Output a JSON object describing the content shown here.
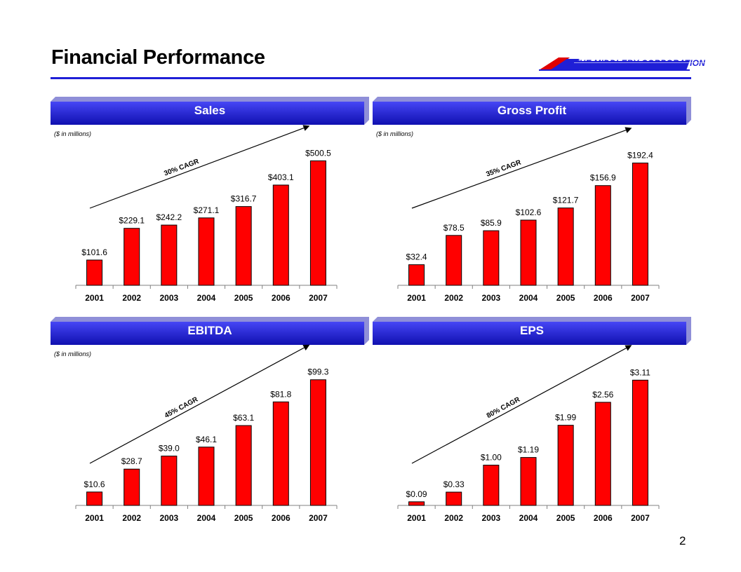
{
  "page": {
    "title": "Financial Performance",
    "page_number": "2",
    "logo_text": "THE MIDDLEBY CORPORATION",
    "colors": {
      "accent": "#1f1fd6",
      "bar": "#ff0000",
      "header_top": "#3a3af0",
      "header_bottom": "#1212b8",
      "logo_red": "#e00000"
    }
  },
  "chart_data": [
    {
      "type": "bar",
      "title": "Sales",
      "units_note": "($ in millions)",
      "categories": [
        "2001",
        "2002",
        "2003",
        "2004",
        "2005",
        "2006",
        "2007"
      ],
      "values": [
        101.6,
        229.1,
        242.2,
        271.1,
        316.7,
        403.1,
        500.5
      ],
      "labels": [
        "$101.6",
        "$229.1",
        "$242.2",
        "$271.1",
        "$316.7",
        "$403.1",
        "$500.5"
      ],
      "cagr_label": "30% CAGR",
      "ylim": [
        0,
        575
      ]
    },
    {
      "type": "bar",
      "title": "Gross Profit",
      "units_note": "($ in millions)",
      "categories": [
        "2001",
        "2002",
        "2003",
        "2004",
        "2005",
        "2006",
        "2007"
      ],
      "values": [
        32.4,
        78.5,
        85.9,
        102.6,
        121.7,
        156.9,
        192.4
      ],
      "labels": [
        "$32.4",
        "$78.5",
        "$85.9",
        "$102.6",
        "$121.7",
        "$156.9",
        "$192.4"
      ],
      "cagr_label": "35% CAGR",
      "ylim": [
        0,
        225
      ]
    },
    {
      "type": "bar",
      "title": "EBITDA",
      "units_note": "($ in millions)",
      "categories": [
        "2001",
        "2002",
        "2003",
        "2004",
        "2005",
        "2006",
        "2007"
      ],
      "values": [
        10.6,
        28.7,
        39.0,
        46.1,
        63.1,
        81.8,
        99.3
      ],
      "labels": [
        "$10.6",
        "$28.7",
        "$39.0",
        "$46.1",
        "$63.1",
        "$81.8",
        "$99.3"
      ],
      "cagr_label": "45% CAGR",
      "ylim": [
        0,
        113
      ]
    },
    {
      "type": "bar",
      "title": "EPS",
      "units_note": "",
      "categories": [
        "2001",
        "2002",
        "2003",
        "2004",
        "2005",
        "2006",
        "2007"
      ],
      "values": [
        0.09,
        0.33,
        1.0,
        1.19,
        1.99,
        2.56,
        3.11
      ],
      "labels": [
        "$0.09",
        "$0.33",
        "$1.00",
        "$1.19",
        "$1.99",
        "$2.56",
        "$3.11"
      ],
      "cagr_label": "80% CAGR",
      "ylim": [
        0,
        3.55
      ]
    }
  ]
}
